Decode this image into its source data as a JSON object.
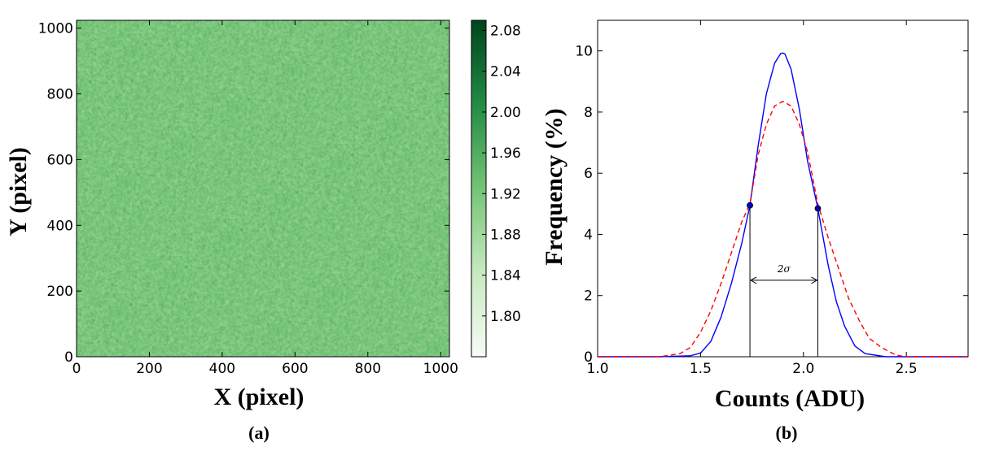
{
  "chart_data": [
    {
      "type": "heatmap",
      "panel_label": "(a)",
      "xlabel": "X (pixel)",
      "ylabel": "Y (pixel)",
      "xlim": [
        0,
        1024
      ],
      "ylim": [
        0,
        1024
      ],
      "xticks": [
        0,
        200,
        400,
        600,
        800,
        1000
      ],
      "yticks": [
        0,
        200,
        400,
        600,
        800,
        1000
      ],
      "colormap": "Greens",
      "color_range": [
        1.76,
        2.09
      ],
      "colorbar_ticks": [
        "1.80",
        "1.84",
        "1.88",
        "1.92",
        "1.96",
        "2.00",
        "2.04",
        "2.08"
      ],
      "colors": {
        "low": "#f7fcf5",
        "high": "#00441b"
      }
    },
    {
      "type": "line",
      "panel_label": "(b)",
      "xlabel": "Counts (ADU)",
      "ylabel": "Frequency (%)",
      "xlim": [
        1.0,
        2.8
      ],
      "ylim": [
        0,
        11
      ],
      "xticks": [
        1.0,
        1.5,
        2.0,
        2.5
      ],
      "yticks": [
        0,
        2,
        4,
        6,
        8,
        10
      ],
      "grid": false,
      "series": [
        {
          "style": "solid",
          "color": "#0000ff",
          "x": [
            1.0,
            1.3,
            1.45,
            1.5,
            1.55,
            1.6,
            1.65,
            1.7,
            1.74,
            1.78,
            1.82,
            1.86,
            1.89,
            1.9,
            1.91,
            1.94,
            1.98,
            2.02,
            2.07,
            2.12,
            2.16,
            2.2,
            2.25,
            2.3,
            2.4,
            2.8
          ],
          "y": [
            0,
            0,
            0.03,
            0.12,
            0.5,
            1.3,
            2.4,
            3.7,
            4.95,
            6.9,
            8.6,
            9.6,
            9.92,
            9.93,
            9.9,
            9.4,
            8.1,
            6.4,
            4.85,
            3.0,
            1.8,
            1.0,
            0.35,
            0.1,
            0,
            0
          ]
        },
        {
          "style": "dashed",
          "color": "#ff0000",
          "x": [
            1.0,
            1.3,
            1.4,
            1.45,
            1.5,
            1.55,
            1.6,
            1.65,
            1.7,
            1.74,
            1.78,
            1.82,
            1.86,
            1.9,
            1.94,
            1.98,
            2.02,
            2.07,
            2.12,
            2.17,
            2.22,
            2.27,
            2.32,
            2.38,
            2.45,
            2.5,
            2.8
          ],
          "y": [
            0,
            0,
            0.1,
            0.3,
            0.8,
            1.5,
            2.4,
            3.4,
            4.4,
            5.0,
            6.6,
            7.6,
            8.2,
            8.35,
            8.2,
            7.6,
            6.7,
            5.0,
            3.9,
            2.9,
            1.9,
            1.2,
            0.6,
            0.3,
            0.05,
            0,
            0
          ]
        }
      ],
      "markers": [
        {
          "x": 1.74,
          "y": 4.95,
          "color": "#0000cc"
        },
        {
          "x": 2.07,
          "y": 4.85,
          "color": "#0000cc"
        }
      ],
      "annotation": {
        "text": "2σ",
        "x_from": 1.74,
        "x_to": 2.07,
        "y": 2.5
      }
    }
  ]
}
